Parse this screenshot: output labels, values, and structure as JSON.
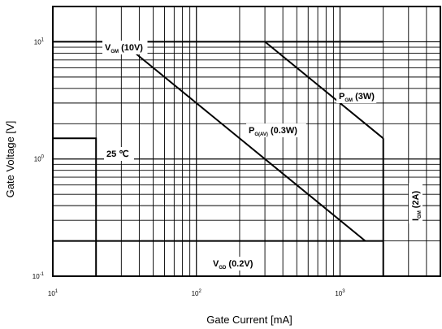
{
  "chart_data": {
    "type": "line",
    "xlabel": "Gate Current [mA]",
    "ylabel": "Gate Voltage [V]",
    "x_scale": "log",
    "y_scale": "log",
    "xlim": [
      10,
      5000
    ],
    "ylim": [
      0.1,
      20
    ],
    "grid": true,
    "x_ticks": [
      {
        "value": 10,
        "label": "10",
        "exp": "1"
      },
      {
        "value": 100,
        "label": "10",
        "exp": "2"
      },
      {
        "value": 1000,
        "label": "10",
        "exp": "3"
      }
    ],
    "y_ticks": [
      {
        "value": 0.1,
        "label": "10",
        "exp": "-1"
      },
      {
        "value": 1,
        "label": "10",
        "exp": "0"
      },
      {
        "value": 10,
        "label": "10",
        "exp": "1"
      }
    ],
    "series": [
      {
        "name": "VGM (10V)",
        "points": [
          [
            10,
            10
          ],
          [
            2000,
            10
          ]
        ]
      },
      {
        "name": "PGM (3W)",
        "points": [
          [
            300,
            10
          ],
          [
            2000,
            1.5
          ]
        ]
      },
      {
        "name": "PG(AV) (0.3W)",
        "points": [
          [
            30,
            10
          ],
          [
            1500,
            0.2
          ]
        ]
      },
      {
        "name": "IGM (2A)",
        "points": [
          [
            2000,
            0.1
          ],
          [
            2000,
            1.5
          ]
        ]
      },
      {
        "name": "VGD (0.2V)",
        "points": [
          [
            10,
            0.2
          ],
          [
            2000,
            0.2
          ]
        ]
      },
      {
        "name": "25 ℃",
        "points": [
          [
            10,
            1.5
          ],
          [
            20,
            1.5
          ],
          [
            20,
            0.1
          ]
        ]
      }
    ],
    "annotations": [
      {
        "main": "V",
        "sub": "GM",
        "rest": "(10V)"
      },
      {
        "main": "P",
        "sub": "GM",
        "rest": "(3W)"
      },
      {
        "main": "P",
        "sub": "G(AV)",
        "rest": "(0.3W)"
      },
      {
        "main": "I",
        "sub": "GM",
        "rest": "(2A)"
      },
      {
        "main": "V",
        "sub": "GD",
        "rest": "(0.2V)"
      },
      {
        "main": "25 ℃",
        "sub": "",
        "rest": ""
      }
    ]
  }
}
